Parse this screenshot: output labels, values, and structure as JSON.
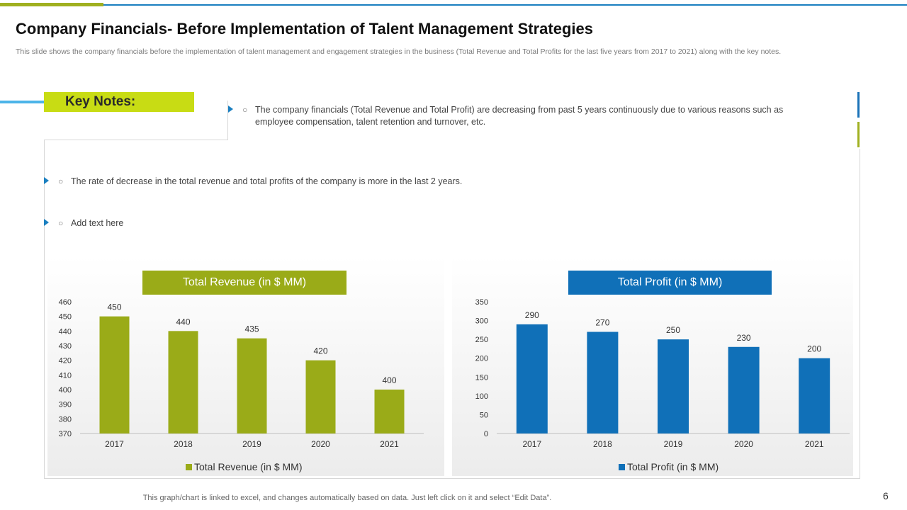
{
  "slide": {
    "title": "Company Financials- Before Implementation of Talent Management Strategies",
    "subtitle": "This slide shows the company financials before the implementation of talent management and engagement strategies in the business (Total Revenue and Total Profits for the last five years from 2017 to 2021) along with the key notes.",
    "footer_note": "This graph/chart is linked to excel, and changes automatically based on data. Just left click on it and select “Edit Data”.",
    "page_number": "6"
  },
  "key_notes": {
    "heading": "Key Notes:",
    "items": [
      "The company financials (Total Revenue and Total Profit) are decreasing from past 5 years continuously due to various reasons such as employee compensation, talent retention and turnover, etc.",
      "The rate of decrease in the total revenue and total profits of the company is more in the last 2 years.",
      "Add text here"
    ]
  },
  "colors": {
    "revenue": "#9aab18",
    "profit": "#1070b8",
    "accent_green": "#c8dc14",
    "accent_blue": "#1a7fc0"
  },
  "chart_data": [
    {
      "type": "bar",
      "title": "Total Revenue  (in $ MM)",
      "legend": "Total Revenue (in $ MM)",
      "categories": [
        "2017",
        "2018",
        "2019",
        "2020",
        "2021"
      ],
      "values": [
        450,
        440,
        435,
        420,
        400
      ],
      "ylim": [
        370,
        460
      ],
      "yticks": [
        370,
        380,
        390,
        400,
        410,
        420,
        430,
        440,
        450,
        460
      ],
      "color": "#9aab18",
      "legend_position": "bottom"
    },
    {
      "type": "bar",
      "title": "Total Profit (in $ MM)",
      "legend": "Total Profit (in $ MM)",
      "categories": [
        "2017",
        "2018",
        "2019",
        "2020",
        "2021"
      ],
      "values": [
        290,
        270,
        250,
        230,
        200
      ],
      "ylim": [
        0,
        350
      ],
      "yticks": [
        0,
        50,
        100,
        150,
        200,
        250,
        300,
        350
      ],
      "color": "#1070b8",
      "legend_position": "bottom"
    }
  ]
}
